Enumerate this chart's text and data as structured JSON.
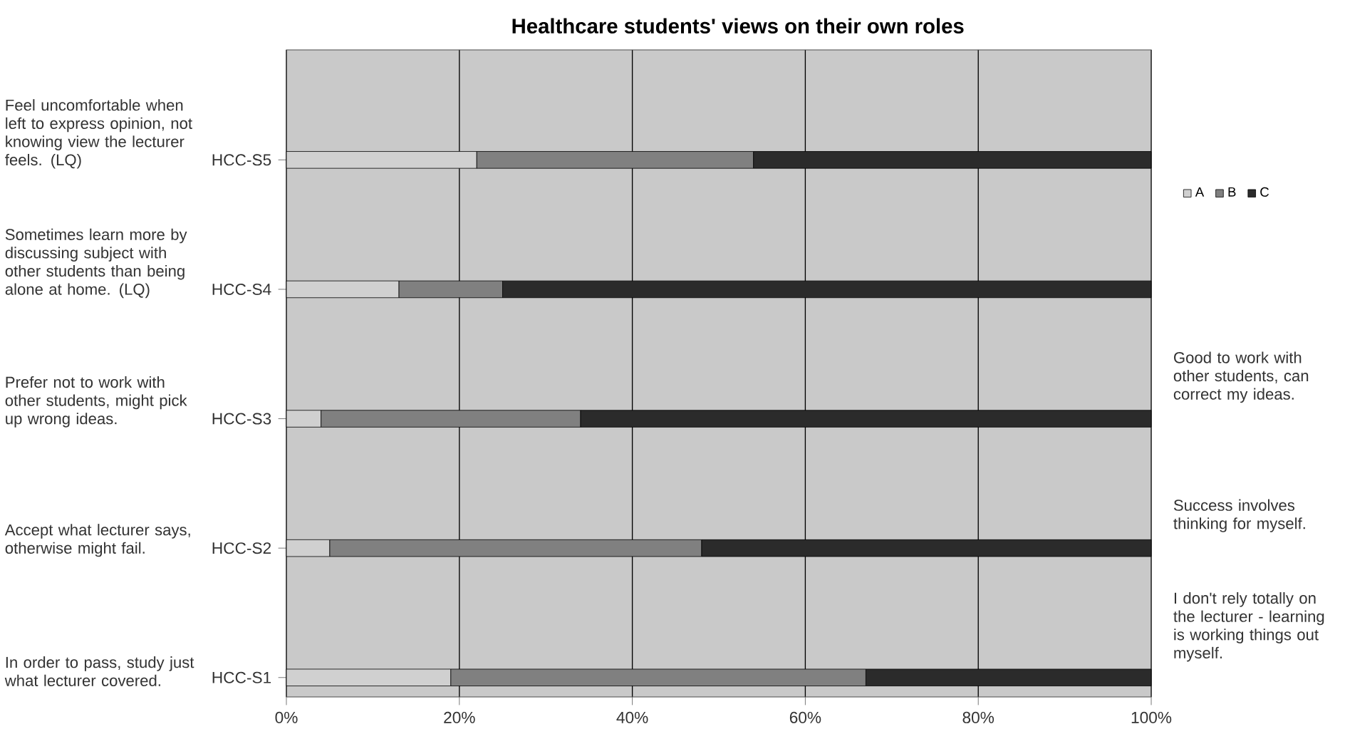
{
  "chart_data": {
    "type": "bar",
    "orientation": "horizontal",
    "stacked": true,
    "title": "Healthcare students' views on their own roles",
    "categories": [
      "HCC-S5",
      "HCC-S4",
      "HCC-S3",
      "HCC-S2",
      "HCC-S1"
    ],
    "series": [
      {
        "name": "A",
        "color": "#d0d0d0",
        "values": [
          22,
          13,
          4,
          5,
          19
        ]
      },
      {
        "name": "B",
        "color": "#808080",
        "values": [
          32,
          12,
          30,
          43,
          48
        ]
      },
      {
        "name": "C",
        "color": "#2b2b2b",
        "values": [
          46,
          75,
          66,
          52,
          33
        ]
      }
    ],
    "xlim": [
      0,
      100
    ],
    "xticks": [
      {
        "value": 0,
        "label": "0%"
      },
      {
        "value": 20,
        "label": "20%"
      },
      {
        "value": 40,
        "label": "40%"
      },
      {
        "value": 60,
        "label": "60%"
      },
      {
        "value": 80,
        "label": "80%"
      },
      {
        "value": 100,
        "label": "100%"
      }
    ],
    "grid": "x",
    "legend": "right",
    "annotations": [
      "Feel uncomfortable when left to express opinion, not knowing view the lecturer feels. (LQ)",
      "Sometimes learn more by discussing subject with other students than being alone at home. (LQ)",
      "Prefer not to work with other students, might pick up wrong ideas.",
      "Accept what lecturer says, otherwise might fail.",
      "In order to pass, study just what lecturer covered.",
      "Good to work with other students, can correct my ideas.",
      "Success involves thinking for myself.",
      "I don't rely totally on the lecturer - learning is working things out myself."
    ]
  }
}
